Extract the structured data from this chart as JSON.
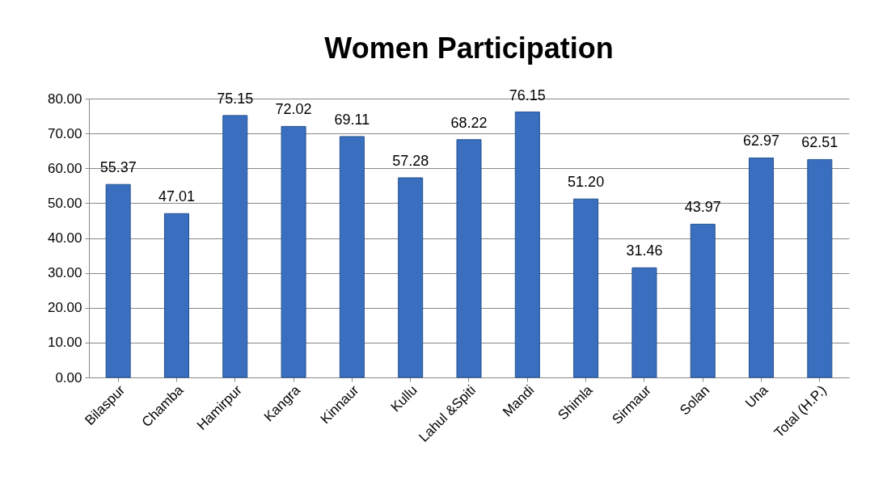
{
  "chart_data": {
    "type": "bar",
    "title": "Women   Participation",
    "categories": [
      "Bilaspur",
      "Chamba",
      "Hamirpur",
      "Kangra",
      "Kinnaur",
      "Kullu",
      "Lahul &Spiti",
      "Mandi",
      "Shimla",
      "Sirmaur",
      "Solan",
      "Una",
      "Total (H.P.)"
    ],
    "values": [
      55.37,
      47.01,
      75.15,
      72.02,
      69.11,
      57.28,
      68.22,
      76.15,
      51.2,
      31.46,
      43.97,
      62.97,
      62.51
    ],
    "value_labels": [
      "55.37",
      "47.01",
      "75.15",
      "72.02",
      "69.11",
      "57.28",
      "68.22",
      "76.15",
      "51.20",
      "31.46",
      "43.97",
      "62.97",
      "62.51"
    ],
    "color": "#3a6fbf",
    "ylim": [
      0,
      80
    ],
    "yticks": [
      {
        "value": 0,
        "label": "0.00"
      },
      {
        "value": 10,
        "label": "10.00"
      },
      {
        "value": 20,
        "label": "20.00"
      },
      {
        "value": 30,
        "label": "30.00"
      },
      {
        "value": 40,
        "label": "40.00"
      },
      {
        "value": 50,
        "label": "50.00"
      },
      {
        "value": 60,
        "label": "60.00"
      },
      {
        "value": 70,
        "label": "70.00"
      },
      {
        "value": 80,
        "label": "80.00"
      }
    ],
    "grid": "y"
  }
}
